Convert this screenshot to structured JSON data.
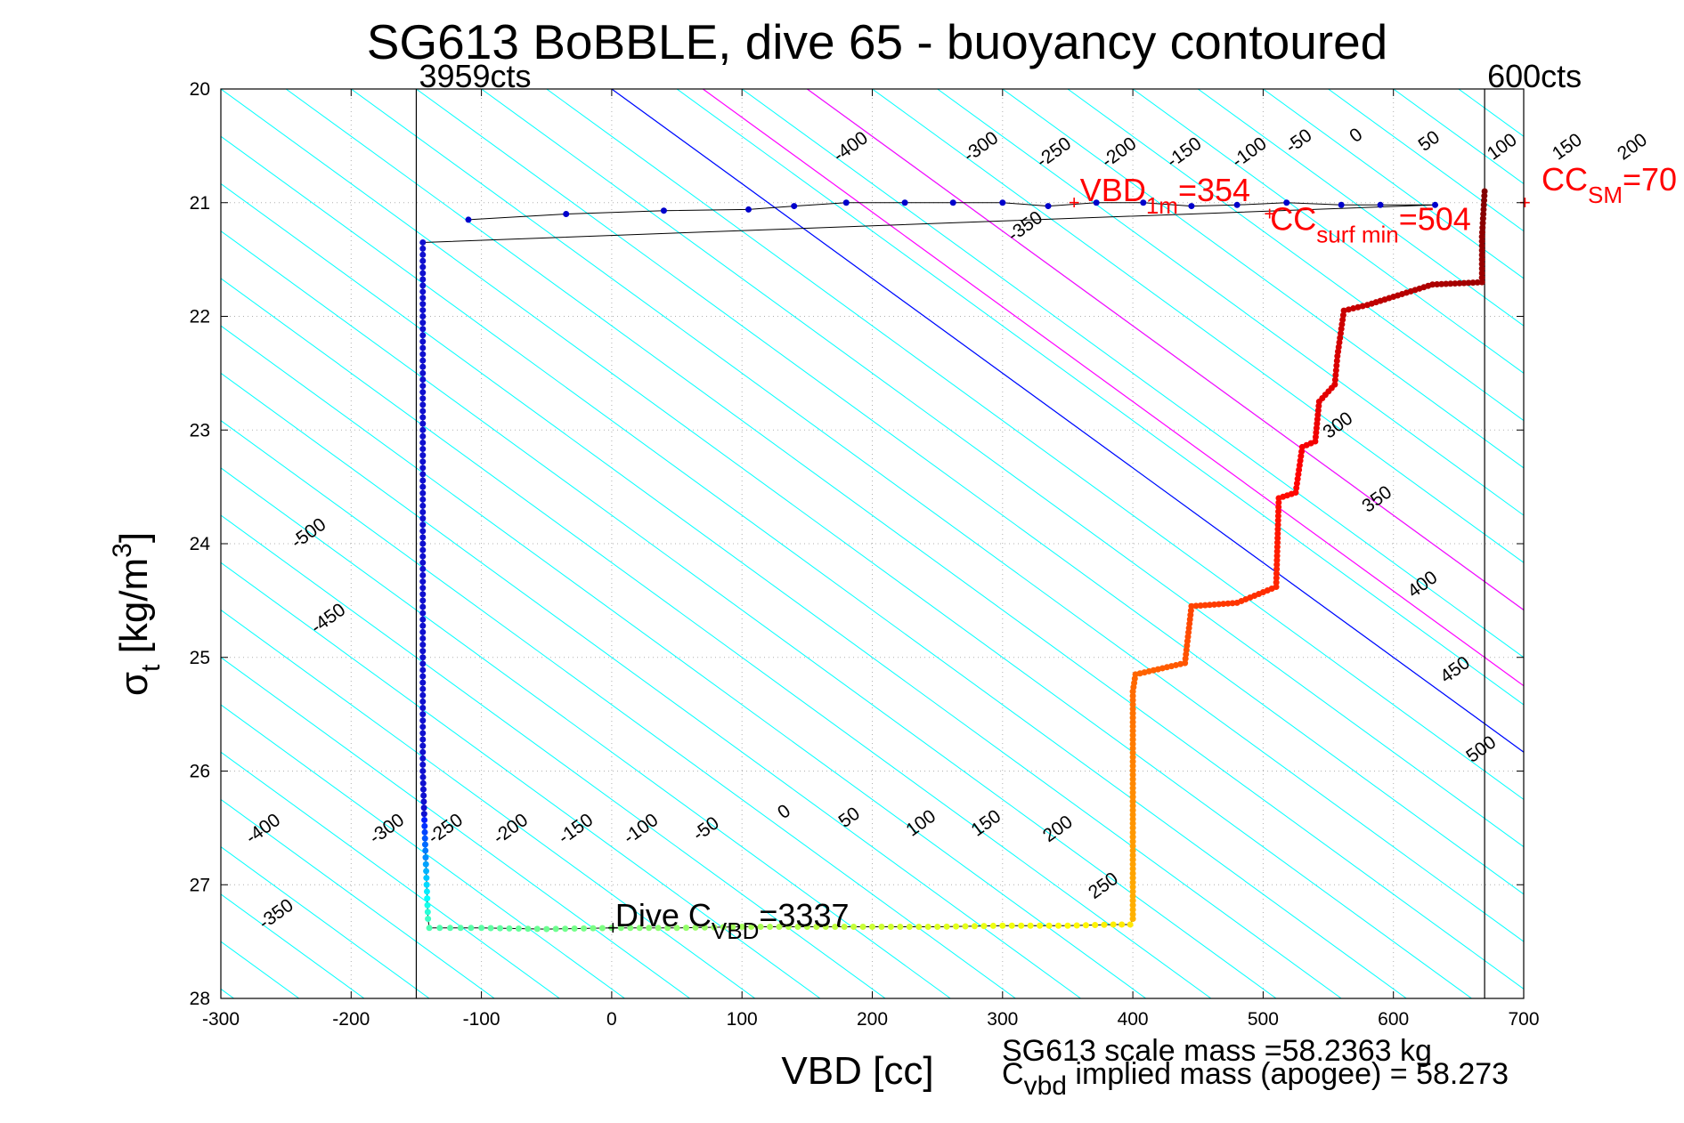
{
  "chart_data": {
    "type": "scatter",
    "title": "SG613 BoBBLE, dive 65 - buoyancy contoured",
    "xlabel": "VBD [cc]",
    "ylabel_main": "σ",
    "ylabel_sub": "t",
    "ylabel_rest": " [kg/m",
    "ylabel_sup": "3",
    "ylabel_end": "]",
    "xlim": [
      -300,
      700
    ],
    "ylim": [
      20,
      28
    ],
    "y_reversed": true,
    "grid": true,
    "xticks": [
      -300,
      -200,
      -100,
      0,
      100,
      200,
      300,
      400,
      500,
      600,
      700
    ],
    "yticks": [
      20,
      21,
      22,
      23,
      24,
      25,
      26,
      27,
      28
    ],
    "vlines": [
      {
        "x": -150,
        "label": "3959cts",
        "color": "#000000"
      },
      {
        "x": 670,
        "label": "600cts",
        "color": "#000000"
      }
    ],
    "contours": {
      "color": "#00ffff",
      "slope_cc_per_sigma": 120,
      "levels": [
        -500,
        -450,
        -400,
        -350,
        -300,
        -250,
        -200,
        -150,
        -100,
        -50,
        0,
        50,
        100,
        150,
        200,
        250,
        300,
        350,
        400,
        450,
        500
      ],
      "highlight": [
        {
          "level": 0,
          "color": "#0000ff"
        },
        {
          "level": 70,
          "color": "#ff00ff"
        },
        {
          "level": 150,
          "color": "#ff00ff"
        }
      ],
      "labels_top": [
        {
          "level": -400,
          "text": "-400",
          "sigma": 20.55
        },
        {
          "level": -350,
          "text": "-350",
          "sigma": 21.25
        },
        {
          "level": -300,
          "text": "-300",
          "sigma": 20.55
        },
        {
          "level": -250,
          "text": "-250",
          "sigma": 20.6
        },
        {
          "level": -200,
          "text": "-200",
          "sigma": 20.6
        },
        {
          "level": -150,
          "text": "-150",
          "sigma": 20.6
        },
        {
          "level": -100,
          "text": "-100",
          "sigma": 20.6
        },
        {
          "level": -50,
          "text": "-50",
          "sigma": 20.5
        },
        {
          "level": 0,
          "text": "0",
          "sigma": 20.45
        },
        {
          "level": 50,
          "text": "50",
          "sigma": 20.5
        },
        {
          "level": 100,
          "text": "100",
          "sigma": 20.55
        },
        {
          "level": 150,
          "text": "150",
          "sigma": 20.55
        },
        {
          "level": 200,
          "text": "200",
          "sigma": 20.55
        },
        {
          "level": 250,
          "text": "250",
          "sigma": 21.1
        }
      ],
      "labels_right": [
        {
          "text": "300",
          "sigma": 23.0
        },
        {
          "text": "350",
          "sigma": 23.65
        },
        {
          "text": "400",
          "sigma": 24.4
        },
        {
          "text": "450",
          "sigma": 25.15
        },
        {
          "text": "500",
          "sigma": 25.85
        }
      ],
      "labels_left": [
        {
          "text": "-500",
          "sigma": 23.95
        },
        {
          "text": "-450",
          "sigma": 24.7
        },
        {
          "text": "-400",
          "sigma": 26.55
        },
        {
          "text": "-350",
          "sigma": 27.3
        }
      ],
      "labels_bottom": [
        {
          "text": "-300",
          "sigma": 26.55
        },
        {
          "text": "-250",
          "sigma": 26.55
        },
        {
          "text": "-200",
          "sigma": 26.55
        },
        {
          "text": "-150",
          "sigma": 26.55
        },
        {
          "text": "-100",
          "sigma": 26.55
        },
        {
          "text": "-50",
          "sigma": 26.55
        },
        {
          "text": "0",
          "sigma": 26.4
        },
        {
          "text": "50",
          "sigma": 26.45
        },
        {
          "text": "100",
          "sigma": 26.5
        },
        {
          "text": "150",
          "sigma": 26.5
        },
        {
          "text": "200",
          "sigma": 26.55
        },
        {
          "text": "250",
          "sigma": 27.05
        }
      ]
    },
    "series": [
      {
        "dive_surface": [
          [
            -110,
            21.15
          ],
          [
            -35,
            21.1
          ],
          [
            40,
            21.07
          ],
          [
            105,
            21.06
          ],
          [
            140,
            21.03
          ],
          [
            180,
            21.0
          ],
          [
            225,
            21.0
          ],
          [
            262,
            21.0
          ],
          [
            300,
            21.0
          ],
          [
            335,
            21.03
          ],
          [
            372,
            21.0
          ],
          [
            408,
            21.0
          ],
          [
            445,
            21.03
          ],
          [
            480,
            21.02
          ],
          [
            518,
            21.0
          ],
          [
            560,
            21.02
          ],
          [
            590,
            21.02
          ],
          [
            632,
            21.02
          ]
        ],
        "dive_descent": [
          [
            -145,
            21.35
          ],
          [
            -145,
            22.0
          ],
          [
            -145,
            23.0
          ],
          [
            -145,
            24.0
          ],
          [
            -145,
            25.0
          ],
          [
            -145,
            26.0
          ],
          [
            -143,
            26.7
          ],
          [
            -142,
            27.0
          ],
          [
            -141,
            27.3
          ]
        ],
        "bottom": [
          [
            -140,
            27.38
          ],
          [
            -100,
            27.38
          ],
          [
            -50,
            27.39
          ],
          [
            0,
            27.38
          ],
          [
            50,
            27.38
          ],
          [
            100,
            27.37
          ],
          [
            150,
            27.37
          ],
          [
            200,
            27.37
          ],
          [
            250,
            27.37
          ],
          [
            300,
            27.36
          ],
          [
            350,
            27.36
          ],
          [
            385,
            27.35
          ],
          [
            398,
            27.35
          ]
        ],
        "climb": [
          [
            400,
            27.3
          ],
          [
            400,
            26.5
          ],
          [
            400,
            25.8
          ],
          [
            400,
            25.3
          ],
          [
            402,
            25.15
          ],
          [
            440,
            25.05
          ],
          [
            445,
            24.55
          ],
          [
            480,
            24.52
          ],
          [
            510,
            24.38
          ],
          [
            512,
            23.6
          ],
          [
            525,
            23.55
          ],
          [
            530,
            23.15
          ],
          [
            540,
            23.1
          ],
          [
            543,
            22.75
          ],
          [
            555,
            22.6
          ],
          [
            557,
            22.35
          ],
          [
            562,
            21.95
          ],
          [
            580,
            21.9
          ],
          [
            630,
            21.72
          ],
          [
            668,
            21.7
          ],
          [
            668,
            21.3
          ],
          [
            670,
            20.9
          ]
        ]
      }
    ],
    "annotations": [
      {
        "text": "VBD",
        "sub": "1m",
        "rest": "=354",
        "color": "#ff0000",
        "x": 354,
        "y": 21.0
      },
      {
        "text": "CC",
        "sub": "surf min",
        "rest": "=504",
        "color": "#ff0000",
        "x": 504,
        "y": 21.1
      },
      {
        "text": "CC",
        "sub": "SM",
        "rest": "=70",
        "color": "#ff0000",
        "x": 700,
        "y": 21.0
      },
      {
        "text": "Dive C",
        "sub": "VBD",
        "rest": "=3337",
        "color": "#000000",
        "x": 0,
        "y": 27.38
      }
    ],
    "footer": {
      "line1": "SG613 scale mass =58.2363 kg",
      "line2_main": "C",
      "line2_sub": "vbd",
      "line2_rest": " implied mass (apogee) = 58.273"
    }
  }
}
